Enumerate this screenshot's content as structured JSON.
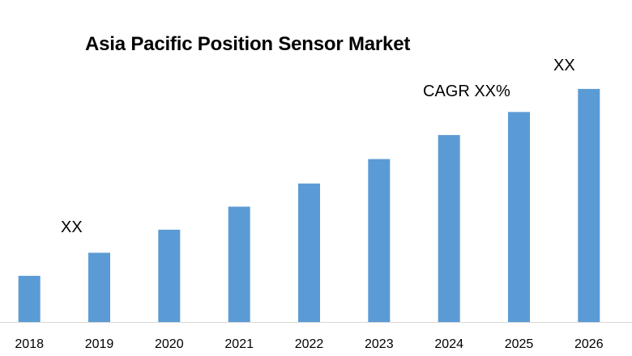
{
  "chart_data": {
    "type": "bar",
    "title": "Asia Pacific Position Sensor Market",
    "categories": [
      "2018",
      "2019",
      "2020",
      "2021",
      "2022",
      "2023",
      "2024",
      "2025",
      "2026"
    ],
    "values": [
      10,
      15,
      20,
      25,
      30,
      35.3,
      40.5,
      45.5,
      50.5
    ],
    "ylim": [
      0,
      51
    ],
    "xlabel": "",
    "ylabel": "",
    "grid": false,
    "legend": "none",
    "bar_color": "#5B9BD5",
    "axis_color": "#D9D9D9",
    "annotations": {
      "first": "XX",
      "cagr": "CAGR XX%",
      "last": "XX"
    }
  }
}
